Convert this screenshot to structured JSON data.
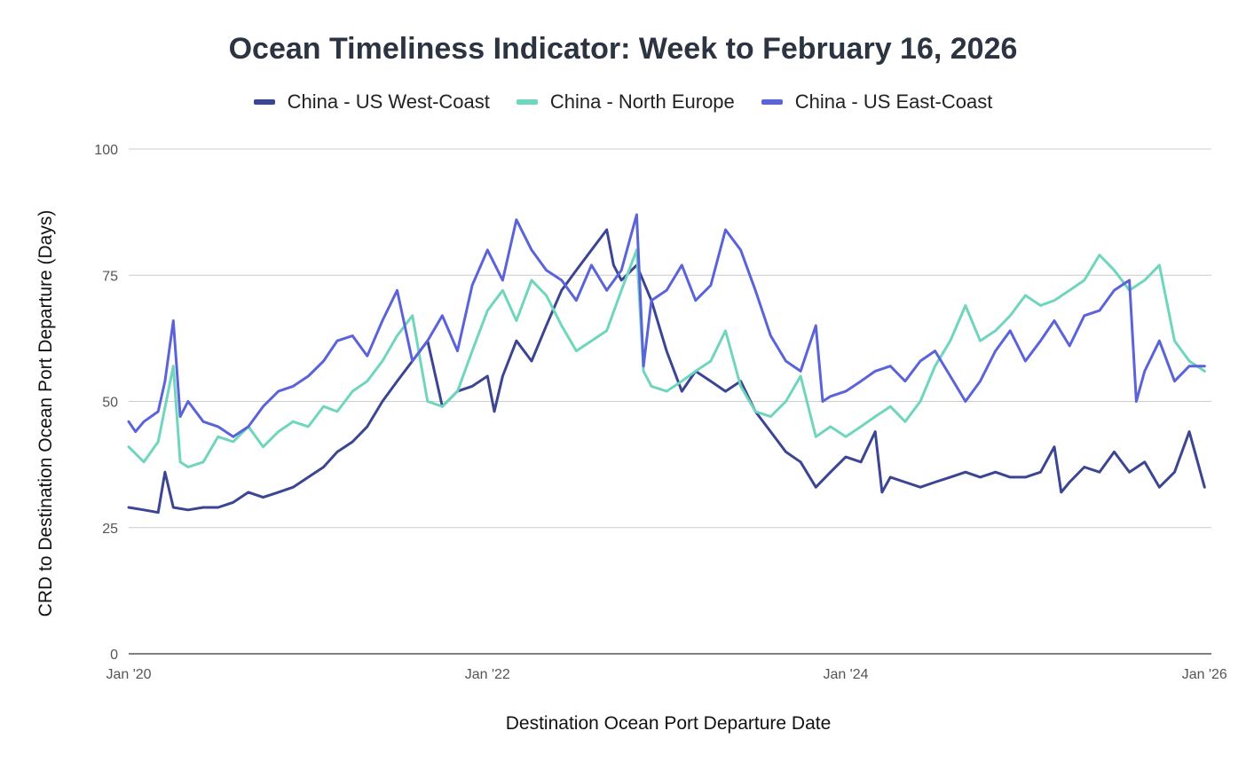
{
  "chart_data": {
    "type": "line",
    "title": "Ocean Timeliness Indicator: Week to February 16, 2026",
    "xlabel": "Destination Ocean Port Departure Date",
    "ylabel": "CRD to Destination Ocean Port Departure (Days)",
    "ylim": [
      0,
      100
    ],
    "yticks": [
      "0",
      "25",
      "50",
      "75",
      "100"
    ],
    "xlim": [
      "2020-01-01",
      "2026-01-15"
    ],
    "xticks": [
      {
        "label": "Jan '20",
        "date": "2020-01-01"
      },
      {
        "label": "Jan '22",
        "date": "2022-01-01"
      },
      {
        "label": "Jan '24",
        "date": "2024-01-01"
      },
      {
        "label": "Jan '26",
        "date": "2026-01-01"
      }
    ],
    "grid": true,
    "legend_position": "top",
    "series": [
      {
        "name": "China - US West-Coast",
        "color": "#3b4591",
        "points": [
          [
            "2020-01-01",
            29
          ],
          [
            "2020-02-01",
            28.5
          ],
          [
            "2020-03-01",
            28
          ],
          [
            "2020-03-15",
            36
          ],
          [
            "2020-04-01",
            29
          ],
          [
            "2020-05-01",
            28.5
          ],
          [
            "2020-06-01",
            29
          ],
          [
            "2020-07-01",
            29
          ],
          [
            "2020-08-01",
            30
          ],
          [
            "2020-09-01",
            32
          ],
          [
            "2020-10-01",
            31
          ],
          [
            "2020-11-01",
            32
          ],
          [
            "2020-12-01",
            33
          ],
          [
            "2021-01-01",
            35
          ],
          [
            "2021-02-01",
            37
          ],
          [
            "2021-03-01",
            40
          ],
          [
            "2021-04-01",
            42
          ],
          [
            "2021-05-01",
            45
          ],
          [
            "2021-06-01",
            50
          ],
          [
            "2021-07-01",
            54
          ],
          [
            "2021-08-01",
            58
          ],
          [
            "2021-09-01",
            62
          ],
          [
            "2021-10-01",
            49
          ],
          [
            "2021-11-01",
            52
          ],
          [
            "2021-12-01",
            53
          ],
          [
            "2022-01-01",
            55
          ],
          [
            "2022-01-15",
            48
          ],
          [
            "2022-02-01",
            55
          ],
          [
            "2022-03-01",
            62
          ],
          [
            "2022-04-01",
            58
          ],
          [
            "2022-05-01",
            65
          ],
          [
            "2022-06-01",
            72
          ],
          [
            "2022-07-01",
            76
          ],
          [
            "2022-08-01",
            80
          ],
          [
            "2022-09-01",
            84
          ],
          [
            "2022-09-15",
            77
          ],
          [
            "2022-10-01",
            74
          ],
          [
            "2022-11-01",
            77
          ],
          [
            "2022-12-01",
            70
          ],
          [
            "2023-01-01",
            60
          ],
          [
            "2023-02-01",
            52
          ],
          [
            "2023-03-01",
            56
          ],
          [
            "2023-04-01",
            54
          ],
          [
            "2023-05-01",
            52
          ],
          [
            "2023-06-01",
            54
          ],
          [
            "2023-07-01",
            48
          ],
          [
            "2023-08-01",
            44
          ],
          [
            "2023-09-01",
            40
          ],
          [
            "2023-10-01",
            38
          ],
          [
            "2023-11-01",
            33
          ],
          [
            "2023-12-01",
            36
          ],
          [
            "2024-01-01",
            39
          ],
          [
            "2024-02-01",
            38
          ],
          [
            "2024-03-01",
            44
          ],
          [
            "2024-03-15",
            32
          ],
          [
            "2024-04-01",
            35
          ],
          [
            "2024-05-01",
            34
          ],
          [
            "2024-06-01",
            33
          ],
          [
            "2024-07-01",
            34
          ],
          [
            "2024-08-01",
            35
          ],
          [
            "2024-09-01",
            36
          ],
          [
            "2024-10-01",
            35
          ],
          [
            "2024-11-01",
            36
          ],
          [
            "2024-12-01",
            35
          ],
          [
            "2025-01-01",
            35
          ],
          [
            "2025-02-01",
            36
          ],
          [
            "2025-03-01",
            41
          ],
          [
            "2025-03-15",
            32
          ],
          [
            "2025-04-01",
            34
          ],
          [
            "2025-05-01",
            37
          ],
          [
            "2025-06-01",
            36
          ],
          [
            "2025-07-01",
            40
          ],
          [
            "2025-08-01",
            36
          ],
          [
            "2025-09-01",
            38
          ],
          [
            "2025-10-01",
            33
          ],
          [
            "2025-11-01",
            36
          ],
          [
            "2025-12-01",
            44
          ],
          [
            "2026-01-01",
            33
          ]
        ]
      },
      {
        "name": "China - North Europe",
        "color": "#6fd6bd",
        "points": [
          [
            "2020-01-01",
            41
          ],
          [
            "2020-02-01",
            38
          ],
          [
            "2020-03-01",
            42
          ],
          [
            "2020-04-01",
            57
          ],
          [
            "2020-04-15",
            38
          ],
          [
            "2020-05-01",
            37
          ],
          [
            "2020-06-01",
            38
          ],
          [
            "2020-07-01",
            43
          ],
          [
            "2020-08-01",
            42
          ],
          [
            "2020-09-01",
            45
          ],
          [
            "2020-10-01",
            41
          ],
          [
            "2020-11-01",
            44
          ],
          [
            "2020-12-01",
            46
          ],
          [
            "2021-01-01",
            45
          ],
          [
            "2021-02-01",
            49
          ],
          [
            "2021-03-01",
            48
          ],
          [
            "2021-04-01",
            52
          ],
          [
            "2021-05-01",
            54
          ],
          [
            "2021-06-01",
            58
          ],
          [
            "2021-07-01",
            63
          ],
          [
            "2021-08-01",
            67
          ],
          [
            "2021-09-01",
            50
          ],
          [
            "2021-10-01",
            49
          ],
          [
            "2021-11-01",
            52
          ],
          [
            "2021-12-01",
            60
          ],
          [
            "2022-01-01",
            68
          ],
          [
            "2022-02-01",
            72
          ],
          [
            "2022-03-01",
            66
          ],
          [
            "2022-04-01",
            74
          ],
          [
            "2022-05-01",
            71
          ],
          [
            "2022-06-01",
            65
          ],
          [
            "2022-07-01",
            60
          ],
          [
            "2022-08-01",
            62
          ],
          [
            "2022-09-01",
            64
          ],
          [
            "2022-10-01",
            72
          ],
          [
            "2022-11-01",
            80
          ],
          [
            "2022-11-15",
            56
          ],
          [
            "2022-12-01",
            53
          ],
          [
            "2023-01-01",
            52
          ],
          [
            "2023-02-01",
            54
          ],
          [
            "2023-03-01",
            56
          ],
          [
            "2023-04-01",
            58
          ],
          [
            "2023-05-01",
            64
          ],
          [
            "2023-06-01",
            53
          ],
          [
            "2023-07-01",
            48
          ],
          [
            "2023-08-01",
            47
          ],
          [
            "2023-09-01",
            50
          ],
          [
            "2023-10-01",
            55
          ],
          [
            "2023-11-01",
            43
          ],
          [
            "2023-12-01",
            45
          ],
          [
            "2024-01-01",
            43
          ],
          [
            "2024-02-01",
            45
          ],
          [
            "2024-03-01",
            47
          ],
          [
            "2024-04-01",
            49
          ],
          [
            "2024-05-01",
            46
          ],
          [
            "2024-06-01",
            50
          ],
          [
            "2024-07-01",
            57
          ],
          [
            "2024-08-01",
            62
          ],
          [
            "2024-09-01",
            69
          ],
          [
            "2024-10-01",
            62
          ],
          [
            "2024-11-01",
            64
          ],
          [
            "2024-12-01",
            67
          ],
          [
            "2025-01-01",
            71
          ],
          [
            "2025-02-01",
            69
          ],
          [
            "2025-03-01",
            70
          ],
          [
            "2025-04-01",
            72
          ],
          [
            "2025-05-01",
            74
          ],
          [
            "2025-06-01",
            79
          ],
          [
            "2025-07-01",
            76
          ],
          [
            "2025-08-01",
            72
          ],
          [
            "2025-09-01",
            74
          ],
          [
            "2025-10-01",
            77
          ],
          [
            "2025-11-01",
            62
          ],
          [
            "2025-12-01",
            58
          ],
          [
            "2026-01-01",
            56
          ]
        ]
      },
      {
        "name": "China - US East-Coast",
        "color": "#5b63d9",
        "points": [
          [
            "2020-01-01",
            46
          ],
          [
            "2020-01-15",
            44
          ],
          [
            "2020-02-01",
            46
          ],
          [
            "2020-03-01",
            48
          ],
          [
            "2020-03-15",
            54
          ],
          [
            "2020-04-01",
            66
          ],
          [
            "2020-04-15",
            47
          ],
          [
            "2020-05-01",
            50
          ],
          [
            "2020-06-01",
            46
          ],
          [
            "2020-07-01",
            45
          ],
          [
            "2020-08-01",
            43
          ],
          [
            "2020-09-01",
            45
          ],
          [
            "2020-10-01",
            49
          ],
          [
            "2020-11-01",
            52
          ],
          [
            "2020-12-01",
            53
          ],
          [
            "2021-01-01",
            55
          ],
          [
            "2021-02-01",
            58
          ],
          [
            "2021-03-01",
            62
          ],
          [
            "2021-04-01",
            63
          ],
          [
            "2021-05-01",
            59
          ],
          [
            "2021-06-01",
            66
          ],
          [
            "2021-07-01",
            72
          ],
          [
            "2021-08-01",
            58
          ],
          [
            "2021-09-01",
            62
          ],
          [
            "2021-10-01",
            67
          ],
          [
            "2021-11-01",
            60
          ],
          [
            "2021-12-01",
            73
          ],
          [
            "2022-01-01",
            80
          ],
          [
            "2022-02-01",
            74
          ],
          [
            "2022-03-01",
            86
          ],
          [
            "2022-04-01",
            80
          ],
          [
            "2022-05-01",
            76
          ],
          [
            "2022-06-01",
            74
          ],
          [
            "2022-07-01",
            70
          ],
          [
            "2022-08-01",
            77
          ],
          [
            "2022-09-01",
            72
          ],
          [
            "2022-10-01",
            76
          ],
          [
            "2022-11-01",
            87
          ],
          [
            "2022-11-15",
            57
          ],
          [
            "2022-12-01",
            70
          ],
          [
            "2023-01-01",
            72
          ],
          [
            "2023-02-01",
            77
          ],
          [
            "2023-03-01",
            70
          ],
          [
            "2023-04-01",
            73
          ],
          [
            "2023-05-01",
            84
          ],
          [
            "2023-06-01",
            80
          ],
          [
            "2023-07-01",
            72
          ],
          [
            "2023-08-01",
            63
          ],
          [
            "2023-09-01",
            58
          ],
          [
            "2023-10-01",
            56
          ],
          [
            "2023-11-01",
            65
          ],
          [
            "2023-11-15",
            50
          ],
          [
            "2023-12-01",
            51
          ],
          [
            "2024-01-01",
            52
          ],
          [
            "2024-02-01",
            54
          ],
          [
            "2024-03-01",
            56
          ],
          [
            "2024-04-01",
            57
          ],
          [
            "2024-05-01",
            54
          ],
          [
            "2024-06-01",
            58
          ],
          [
            "2024-07-01",
            60
          ],
          [
            "2024-08-01",
            55
          ],
          [
            "2024-09-01",
            50
          ],
          [
            "2024-10-01",
            54
          ],
          [
            "2024-11-01",
            60
          ],
          [
            "2024-12-01",
            64
          ],
          [
            "2025-01-01",
            58
          ],
          [
            "2025-02-01",
            62
          ],
          [
            "2025-03-01",
            66
          ],
          [
            "2025-04-01",
            61
          ],
          [
            "2025-05-01",
            67
          ],
          [
            "2025-06-01",
            68
          ],
          [
            "2025-07-01",
            72
          ],
          [
            "2025-08-01",
            74
          ],
          [
            "2025-08-15",
            50
          ],
          [
            "2025-09-01",
            56
          ],
          [
            "2025-10-01",
            62
          ],
          [
            "2025-11-01",
            54
          ],
          [
            "2025-12-01",
            57
          ],
          [
            "2026-01-01",
            57
          ]
        ]
      }
    ]
  }
}
